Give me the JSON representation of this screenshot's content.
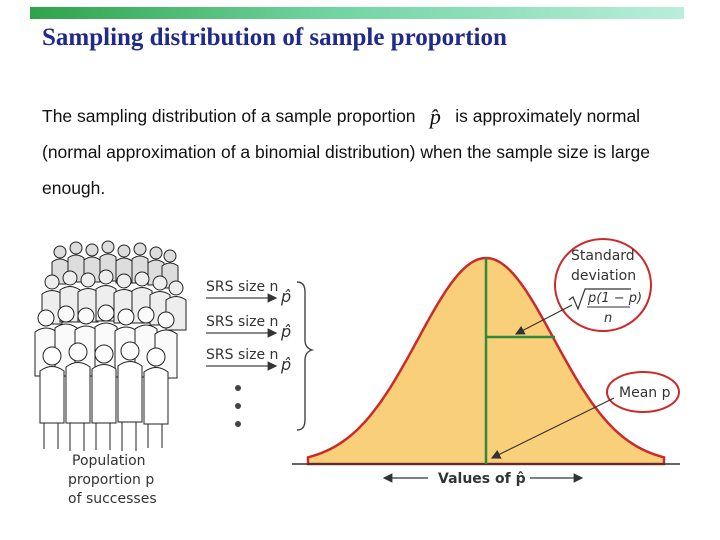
{
  "slide": {
    "title": "Sampling distribution of sample proportion",
    "body_before": "The sampling distribution of a sample proportion ",
    "symbol": "p̂",
    "body_after": " is approximately normal (normal approximation of a binomial distribution) when the sample size is large enough."
  },
  "figure": {
    "population_label_1": "Population",
    "population_label_2": "proportion p",
    "population_label_3": "of successes",
    "srs_label": "SRS size n",
    "stat_label": "p̂",
    "std_label_1": "Standard",
    "std_label_2": "deviation",
    "std_formula_num": "p(1 − p)",
    "std_formula_den": "n",
    "mean_label": "Mean p",
    "axis_label": "Values of p̂",
    "curve_fill": "#f9cf7a",
    "curve_stroke": "#cc2a2a",
    "mean_line_color": "#2f8a3a",
    "circle_color": "#cc2a2a"
  }
}
